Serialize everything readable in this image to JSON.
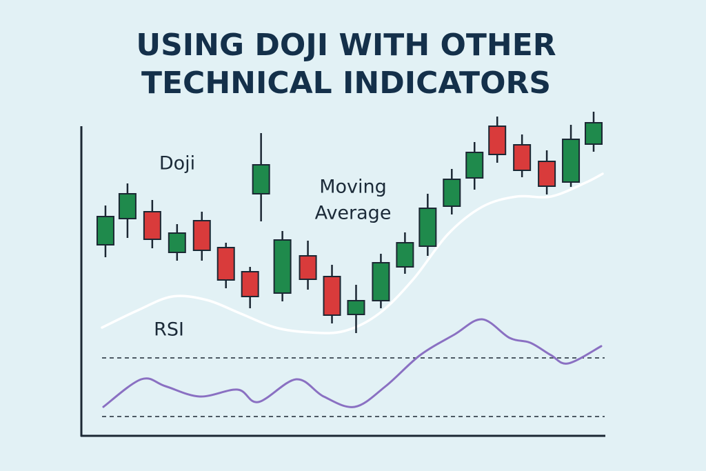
{
  "chart_data": {
    "type": "candlestick",
    "title": [
      "USING DOJI WITH OTHER",
      "TECHNICAL INDICATORS"
    ],
    "xlim": [
      0,
      760
    ],
    "ylim": [
      0,
      480
    ],
    "x": [
      35,
      67,
      103,
      139,
      175,
      210,
      245,
      261,
      292,
      329,
      364,
      399,
      435,
      470,
      503,
      538,
      571,
      604,
      640,
      676,
      711,
      744
    ],
    "open": [
      277,
      315,
      325,
      266,
      312,
      273,
      238,
      351,
      207,
      261,
      231,
      176,
      196,
      245,
      275,
      333,
      374,
      449,
      422,
      398,
      368,
      423
    ],
    "high": [
      334,
      366,
      342,
      307,
      325,
      280,
      245,
      439,
      297,
      283,
      248,
      219,
      264,
      295,
      351,
      387,
      426,
      463,
      437,
      414,
      451,
      470
    ],
    "low": [
      259,
      287,
      272,
      254,
      254,
      214,
      185,
      311,
      195,
      212,
      163,
      149,
      185,
      235,
      261,
      321,
      357,
      396,
      375,
      350,
      361,
      412
    ],
    "close": [
      318,
      351,
      285,
      294,
      269,
      226,
      202,
      393,
      284,
      227,
      175,
      196,
      251,
      280,
      330,
      372,
      411,
      408,
      385,
      362,
      430,
      454
    ],
    "up_color": "#1f8a4c",
    "down_color": "#d93b3b",
    "series": [
      {
        "color": "#ffffff",
        "x": [
          30,
          82,
          132,
          182,
          232,
          282,
          332,
          382,
          432,
          482,
          532,
          582,
          632,
          682,
          732,
          757
        ],
        "values": [
          157,
          182,
          202,
          197,
          177,
          157,
          150,
          152,
          177,
          227,
          292,
          332,
          347,
          347,
          367,
          380
        ]
      },
      {
        "color": "#8a70c2",
        "x": [
          32,
          87,
          122,
          172,
          227,
          257,
          312,
          352,
          397,
          442,
          492,
          542,
          582,
          622,
          652,
          682,
          707,
          755
        ],
        "values": [
          42,
          82,
          72,
          57,
          67,
          49,
          82,
          57,
          42,
          72,
          117,
          147,
          169,
          142,
          135,
          117,
          105,
          130
        ]
      }
    ],
    "levels": [
      113,
      28
    ],
    "annotations": [
      "Doji",
      "Moving",
      "Average",
      "RSI"
    ]
  }
}
